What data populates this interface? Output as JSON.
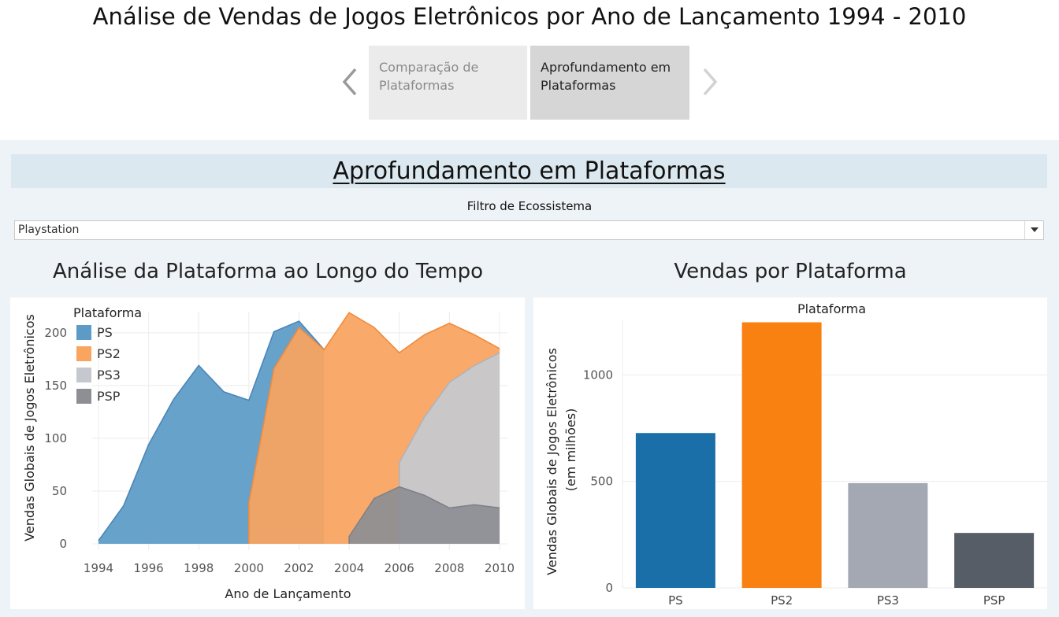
{
  "page": {
    "title": "Análise de Vendas de Jogos Eletrônicos por Ano de Lançamento 1994 - 2010"
  },
  "story_nav": {
    "tabs": [
      {
        "label": "Comparação de\nPlataformas",
        "line1": "Comparação de",
        "line2": "Plataformas",
        "active": false
      },
      {
        "label": "Aprofundamento em\nPlataformas",
        "line1": "Aprofundamento em",
        "line2": "Plataformas",
        "active": true
      }
    ],
    "prev_icon": "chevron-left-icon",
    "next_icon": "chevron-right-icon"
  },
  "dashboard": {
    "header": "Aprofundamento em Plataformas",
    "filter": {
      "label": "Filtro de Ecossistema",
      "selected": "Playstation",
      "icon": "dropdown-arrow-icon"
    },
    "left_title": "Análise da Plataforma ao Longo do Tempo",
    "right_title": "Vendas por Plataforma"
  },
  "chart_data": [
    {
      "type": "area",
      "stacking": "overlapping",
      "xlabel": "Ano de Lançamento",
      "ylabel": "Vendas Globais de Jogos Eletrônicos",
      "legend_title": "Plataforma",
      "legend_position": "top-left",
      "xlim": [
        1994,
        2010
      ],
      "ylim": [
        0,
        220
      ],
      "xticks": [
        1994,
        1996,
        1998,
        2000,
        2002,
        2004,
        2006,
        2008,
        2010
      ],
      "yticks": [
        0,
        50,
        100,
        150,
        200
      ],
      "grid": true,
      "series": [
        {
          "name": "PS",
          "color": "#5b9bc6",
          "line_color": "#4a86b8",
          "points": [
            [
              1994,
              3
            ],
            [
              1995,
              36
            ],
            [
              1996,
              94
            ],
            [
              1997,
              137
            ],
            [
              1998,
              169
            ],
            [
              1999,
              144
            ],
            [
              2000,
              136
            ],
            [
              2001,
              201
            ],
            [
              2002,
              211
            ],
            [
              2003,
              184
            ]
          ]
        },
        {
          "name": "PS2",
          "color": "#f9a45f",
          "line_color": "#f08a3c",
          "points": [
            [
              2000,
              0
            ],
            [
              2000,
              39
            ],
            [
              2001,
              166
            ],
            [
              2002,
              205
            ],
            [
              2003,
              184
            ],
            [
              2004,
              219
            ],
            [
              2005,
              205
            ],
            [
              2006,
              181
            ],
            [
              2007,
              198
            ],
            [
              2008,
              209
            ],
            [
              2009,
              198
            ],
            [
              2010,
              185
            ]
          ]
        },
        {
          "name": "PS3",
          "color": "#c5c9cf",
          "line_color": "#aeb3bb",
          "points": [
            [
              2006,
              0
            ],
            [
              2006,
              77
            ],
            [
              2007,
              120
            ],
            [
              2008,
              153
            ],
            [
              2009,
              169
            ],
            [
              2010,
              181
            ]
          ]
        },
        {
          "name": "PSP",
          "color": "#8d8f95",
          "line_color": "#7f8188",
          "points": [
            [
              2004,
              0
            ],
            [
              2004,
              7
            ],
            [
              2005,
              43
            ],
            [
              2006,
              54
            ],
            [
              2007,
              46
            ],
            [
              2008,
              34
            ],
            [
              2009,
              37
            ],
            [
              2010,
              34
            ]
          ]
        }
      ]
    },
    {
      "type": "bar",
      "title": "Plataforma",
      "ylabel": "Vendas Globais de Jogos Eletrônicos",
      "ylabel2": "(em milhões)",
      "categories": [
        "PS",
        "PS2",
        "PS3",
        "PSP"
      ],
      "values": [
        727,
        1247,
        492,
        258
      ],
      "colors": [
        "#1a6fa8",
        "#f98112",
        "#a3a8b2",
        "#575d66"
      ],
      "ylim": [
        0,
        1260
      ],
      "yticks": [
        0,
        500,
        1000
      ],
      "grid": true
    }
  ]
}
